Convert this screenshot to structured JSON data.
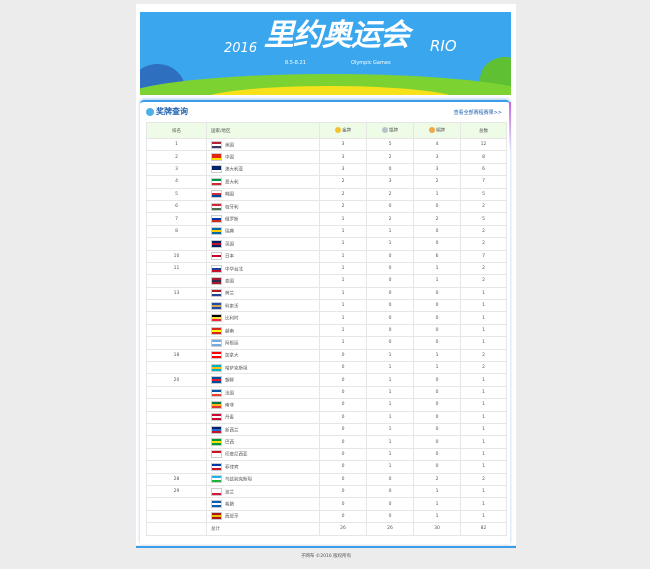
{
  "banner": {
    "year": "2016",
    "title": "里约奥运会",
    "rio": "RIO",
    "dates": "8.5-8.21",
    "subtitle": "Olympic Games"
  },
  "panel": {
    "title": "奖牌查询",
    "more_link": "查看全部赛程赛果>>"
  },
  "table": {
    "headers": {
      "rank": "排名",
      "country": "国家/地区",
      "gold": "金牌",
      "silver": "银牌",
      "bronze": "铜牌",
      "total": "总数"
    },
    "medal_colors": {
      "gold": "#f2c530",
      "silver": "#b8c4cc",
      "bronze": "#f0a848"
    },
    "rows": [
      {
        "rank": "1",
        "country": "美国",
        "flag": [
          "#b22234",
          "#fff",
          "#3c3b6e"
        ],
        "g": "3",
        "s": "5",
        "b": "4",
        "t": "12"
      },
      {
        "rank": "2",
        "country": "中国",
        "flag": [
          "#de2910",
          "#de2910",
          "#ffde00"
        ],
        "g": "3",
        "s": "2",
        "b": "3",
        "t": "8"
      },
      {
        "rank": "3",
        "country": "澳大利亚",
        "flag": [
          "#012169",
          "#012169",
          "#fff"
        ],
        "g": "3",
        "s": "0",
        "b": "3",
        "t": "6"
      },
      {
        "rank": "4",
        "country": "意大利",
        "flag": [
          "#009246",
          "#fff",
          "#ce2b37"
        ],
        "g": "2",
        "s": "3",
        "b": "2",
        "t": "7"
      },
      {
        "rank": "5",
        "country": "韩国",
        "flag": [
          "#fff",
          "#cd2e3a",
          "#0047a0"
        ],
        "g": "2",
        "s": "2",
        "b": "1",
        "t": "5"
      },
      {
        "rank": "6",
        "country": "匈牙利",
        "flag": [
          "#ce2939",
          "#fff",
          "#477050"
        ],
        "g": "2",
        "s": "0",
        "b": "0",
        "t": "2"
      },
      {
        "rank": "7",
        "country": "俄罗斯",
        "flag": [
          "#fff",
          "#0039a6",
          "#d52b1e"
        ],
        "g": "1",
        "s": "2",
        "b": "2",
        "t": "5"
      },
      {
        "rank": "8",
        "country": "瑞典",
        "flag": [
          "#006aa7",
          "#fecc00",
          "#006aa7"
        ],
        "g": "1",
        "s": "1",
        "b": "0",
        "t": "2"
      },
      {
        "rank": "",
        "country": "英国",
        "flag": [
          "#012169",
          "#c8102e",
          "#012169"
        ],
        "g": "1",
        "s": "1",
        "b": "0",
        "t": "2"
      },
      {
        "rank": "10",
        "country": "日本",
        "flag": [
          "#fff",
          "#bc002d",
          "#fff"
        ],
        "g": "1",
        "s": "0",
        "b": "6",
        "t": "7"
      },
      {
        "rank": "11",
        "country": "中华台北",
        "flag": [
          "#fff",
          "#1e3f8f",
          "#c8102e"
        ],
        "g": "1",
        "s": "0",
        "b": "1",
        "t": "2"
      },
      {
        "rank": "",
        "country": "泰国",
        "flag": [
          "#a51931",
          "#2d2a4a",
          "#a51931"
        ],
        "g": "1",
        "s": "0",
        "b": "1",
        "t": "2"
      },
      {
        "rank": "13",
        "country": "荷兰",
        "flag": [
          "#ae1c28",
          "#fff",
          "#21468b"
        ],
        "g": "1",
        "s": "0",
        "b": "0",
        "t": "1"
      },
      {
        "rank": "",
        "country": "科索沃",
        "flag": [
          "#244aa5",
          "#d0a650",
          "#244aa5"
        ],
        "g": "1",
        "s": "0",
        "b": "0",
        "t": "1"
      },
      {
        "rank": "",
        "country": "比利时",
        "flag": [
          "#000",
          "#fae042",
          "#ed2939"
        ],
        "g": "1",
        "s": "0",
        "b": "0",
        "t": "1"
      },
      {
        "rank": "",
        "country": "越南",
        "flag": [
          "#da251d",
          "#ffff00",
          "#da251d"
        ],
        "g": "1",
        "s": "0",
        "b": "0",
        "t": "1"
      },
      {
        "rank": "",
        "country": "阿根廷",
        "flag": [
          "#74acdf",
          "#fff",
          "#74acdf"
        ],
        "g": "1",
        "s": "0",
        "b": "0",
        "t": "1"
      },
      {
        "rank": "18",
        "country": "加拿大",
        "flag": [
          "#ff0000",
          "#fff",
          "#ff0000"
        ],
        "g": "0",
        "s": "1",
        "b": "1",
        "t": "2"
      },
      {
        "rank": "",
        "country": "哈萨克斯坦",
        "flag": [
          "#00afca",
          "#fec50c",
          "#00afca"
        ],
        "g": "0",
        "s": "1",
        "b": "1",
        "t": "2"
      },
      {
        "rank": "20",
        "country": "朝鲜",
        "flag": [
          "#024fa2",
          "#ed1c27",
          "#024fa2"
        ],
        "g": "0",
        "s": "1",
        "b": "0",
        "t": "1"
      },
      {
        "rank": "",
        "country": "法国",
        "flag": [
          "#0055a4",
          "#fff",
          "#ef4135"
        ],
        "g": "0",
        "s": "1",
        "b": "0",
        "t": "1"
      },
      {
        "rank": "",
        "country": "南非",
        "flag": [
          "#007a4d",
          "#ffb612",
          "#de3831"
        ],
        "g": "0",
        "s": "1",
        "b": "0",
        "t": "1"
      },
      {
        "rank": "",
        "country": "丹麦",
        "flag": [
          "#c60c30",
          "#fff",
          "#c60c30"
        ],
        "g": "0",
        "s": "1",
        "b": "0",
        "t": "1"
      },
      {
        "rank": "",
        "country": "新西兰",
        "flag": [
          "#012169",
          "#2a6fc9",
          "#c8102e"
        ],
        "g": "0",
        "s": "1",
        "b": "0",
        "t": "1"
      },
      {
        "rank": "",
        "country": "巴西",
        "flag": [
          "#009c3b",
          "#ffdf00",
          "#009c3b"
        ],
        "g": "0",
        "s": "1",
        "b": "0",
        "t": "1"
      },
      {
        "rank": "",
        "country": "印度尼西亚",
        "flag": [
          "#ce1126",
          "#fff",
          "#fff"
        ],
        "g": "0",
        "s": "1",
        "b": "0",
        "t": "1"
      },
      {
        "rank": "",
        "country": "菲律宾",
        "flag": [
          "#0038a8",
          "#fff",
          "#ce1126"
        ],
        "g": "0",
        "s": "1",
        "b": "0",
        "t": "1"
      },
      {
        "rank": "28",
        "country": "乌兹别克斯坦",
        "flag": [
          "#1eb5e5",
          "#fff",
          "#1eb53a"
        ],
        "g": "0",
        "s": "0",
        "b": "2",
        "t": "2"
      },
      {
        "rank": "29",
        "country": "波兰",
        "flag": [
          "#fff",
          "#fff",
          "#dc143c"
        ],
        "g": "0",
        "s": "0",
        "b": "1",
        "t": "1"
      },
      {
        "rank": "",
        "country": "希腊",
        "flag": [
          "#0d5eaf",
          "#fff",
          "#0d5eaf"
        ],
        "g": "0",
        "s": "0",
        "b": "1",
        "t": "1"
      },
      {
        "rank": "",
        "country": "西班牙",
        "flag": [
          "#aa151b",
          "#f1bf00",
          "#aa151b"
        ],
        "g": "0",
        "s": "0",
        "b": "1",
        "t": "1"
      }
    ],
    "total": {
      "label": "总计",
      "g": "26",
      "s": "26",
      "b": "30",
      "t": "82"
    }
  },
  "footer": {
    "text": "子网布 ©2016 版权所有"
  }
}
